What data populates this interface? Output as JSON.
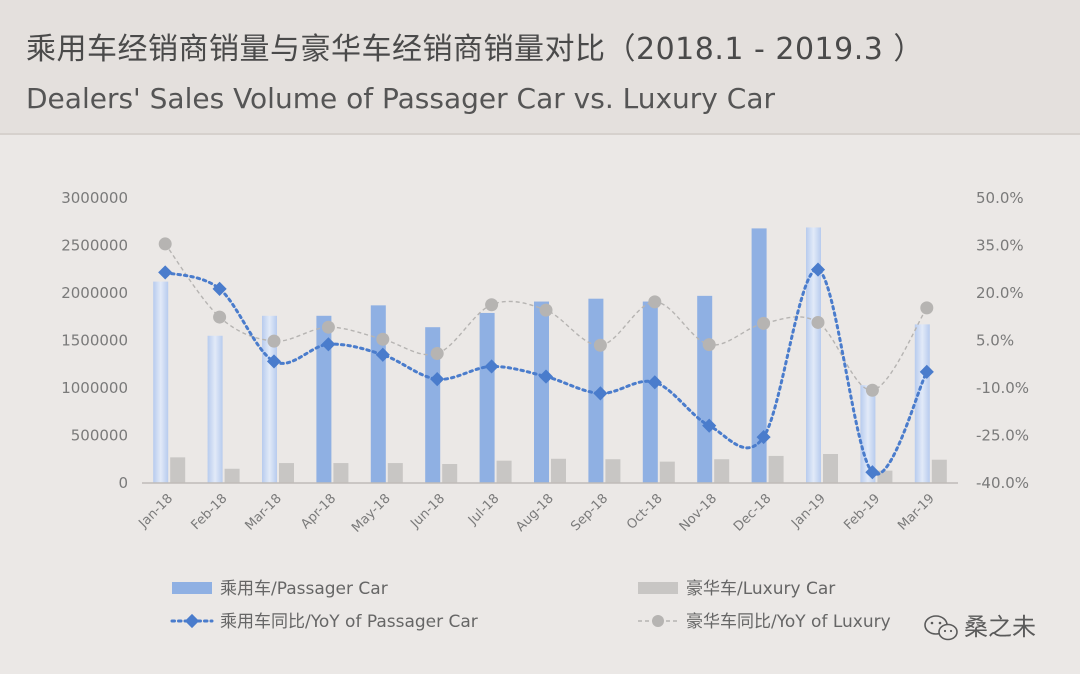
{
  "header": {
    "title_cn": "乘用车经销商销量与豪华车经销商销量对比（2018.1 - 2019.3 ）",
    "title_en": "Dealers' Sales Volume of Passager Car vs. Luxury Car"
  },
  "watermark": {
    "text": "桑之未",
    "icon": "wechat-icon"
  },
  "colors": {
    "passenger_bar": "#8fb0e3",
    "passenger_bar_light": "#c9d7f1",
    "luxury_bar": "#c8c6c4",
    "passenger_yoy": "#4a7ccc",
    "luxury_yoy": "#b6b4b2",
    "axis": "#bfbbb8"
  },
  "chart_data": {
    "type": "bar",
    "title": "乘用车经销商销量与豪华车经销商销量对比（2018.1 - 2019.3 ）",
    "categories": [
      "Jan-18",
      "Feb-18",
      "Mar-18",
      "Apr-18",
      "May-18",
      "Jun-18",
      "Jul-18",
      "Aug-18",
      "Sep-18",
      "Oct-18",
      "Nov-18",
      "Dec-18",
      "Jan-19",
      "Feb-19",
      "Mar-19"
    ],
    "series": [
      {
        "name": "乘用车/Passager Car",
        "kind": "bar",
        "axis": "left",
        "values": [
          2120000,
          1550000,
          1760000,
          1760000,
          1870000,
          1640000,
          1790000,
          1910000,
          1940000,
          1910000,
          1970000,
          2680000,
          2690000,
          1030000,
          1670000
        ],
        "light": [
          true,
          true,
          true,
          false,
          false,
          false,
          false,
          false,
          false,
          false,
          false,
          false,
          true,
          true,
          true
        ]
      },
      {
        "name": "豪华车/Luxury Car",
        "kind": "bar",
        "axis": "left",
        "values": [
          270000,
          150000,
          210000,
          210000,
          210000,
          200000,
          235000,
          255000,
          250000,
          225000,
          250000,
          285000,
          305000,
          130000,
          245000
        ]
      },
      {
        "name": "乘用车同比/YoY of Passager Car",
        "kind": "line",
        "axis": "right",
        "values": [
          26.5,
          21.3,
          -1.6,
          3.8,
          0.5,
          -7.2,
          -3.2,
          -6.4,
          -11.7,
          -8.2,
          -21.9,
          -25.5,
          27.4,
          -36.6,
          -4.9
        ]
      },
      {
        "name": "豪华车同比/YoY of Luxury",
        "kind": "line",
        "axis": "right",
        "values": [
          35.5,
          12.4,
          4.8,
          9.2,
          5.4,
          0.9,
          16.3,
          14.6,
          3.5,
          17.2,
          3.7,
          10.4,
          10.7,
          -10.7,
          15.3
        ]
      }
    ],
    "y_left": {
      "range": [
        0,
        3000000
      ],
      "ticks": [
        "0",
        "500000",
        "1000000",
        "1500000",
        "2000000",
        "2500000",
        "3000000"
      ]
    },
    "y_right": {
      "range": [
        -40,
        50
      ],
      "ticks": [
        "-40.0%",
        "-25.0%",
        "-10.0%",
        "5.0%",
        "20.0%",
        "35.0%",
        "50.0%"
      ]
    },
    "legend": [
      {
        "label": "乘用车/Passager Car",
        "kind": "bar-blue"
      },
      {
        "label": "豪华车/Luxury Car",
        "kind": "bar-gray"
      },
      {
        "label": "乘用车同比/YoY of Passager Car",
        "kind": "line-blue"
      },
      {
        "label": "豪华车同比/YoY of Luxury",
        "kind": "line-gray"
      }
    ],
    "legend_position": "bottom"
  }
}
